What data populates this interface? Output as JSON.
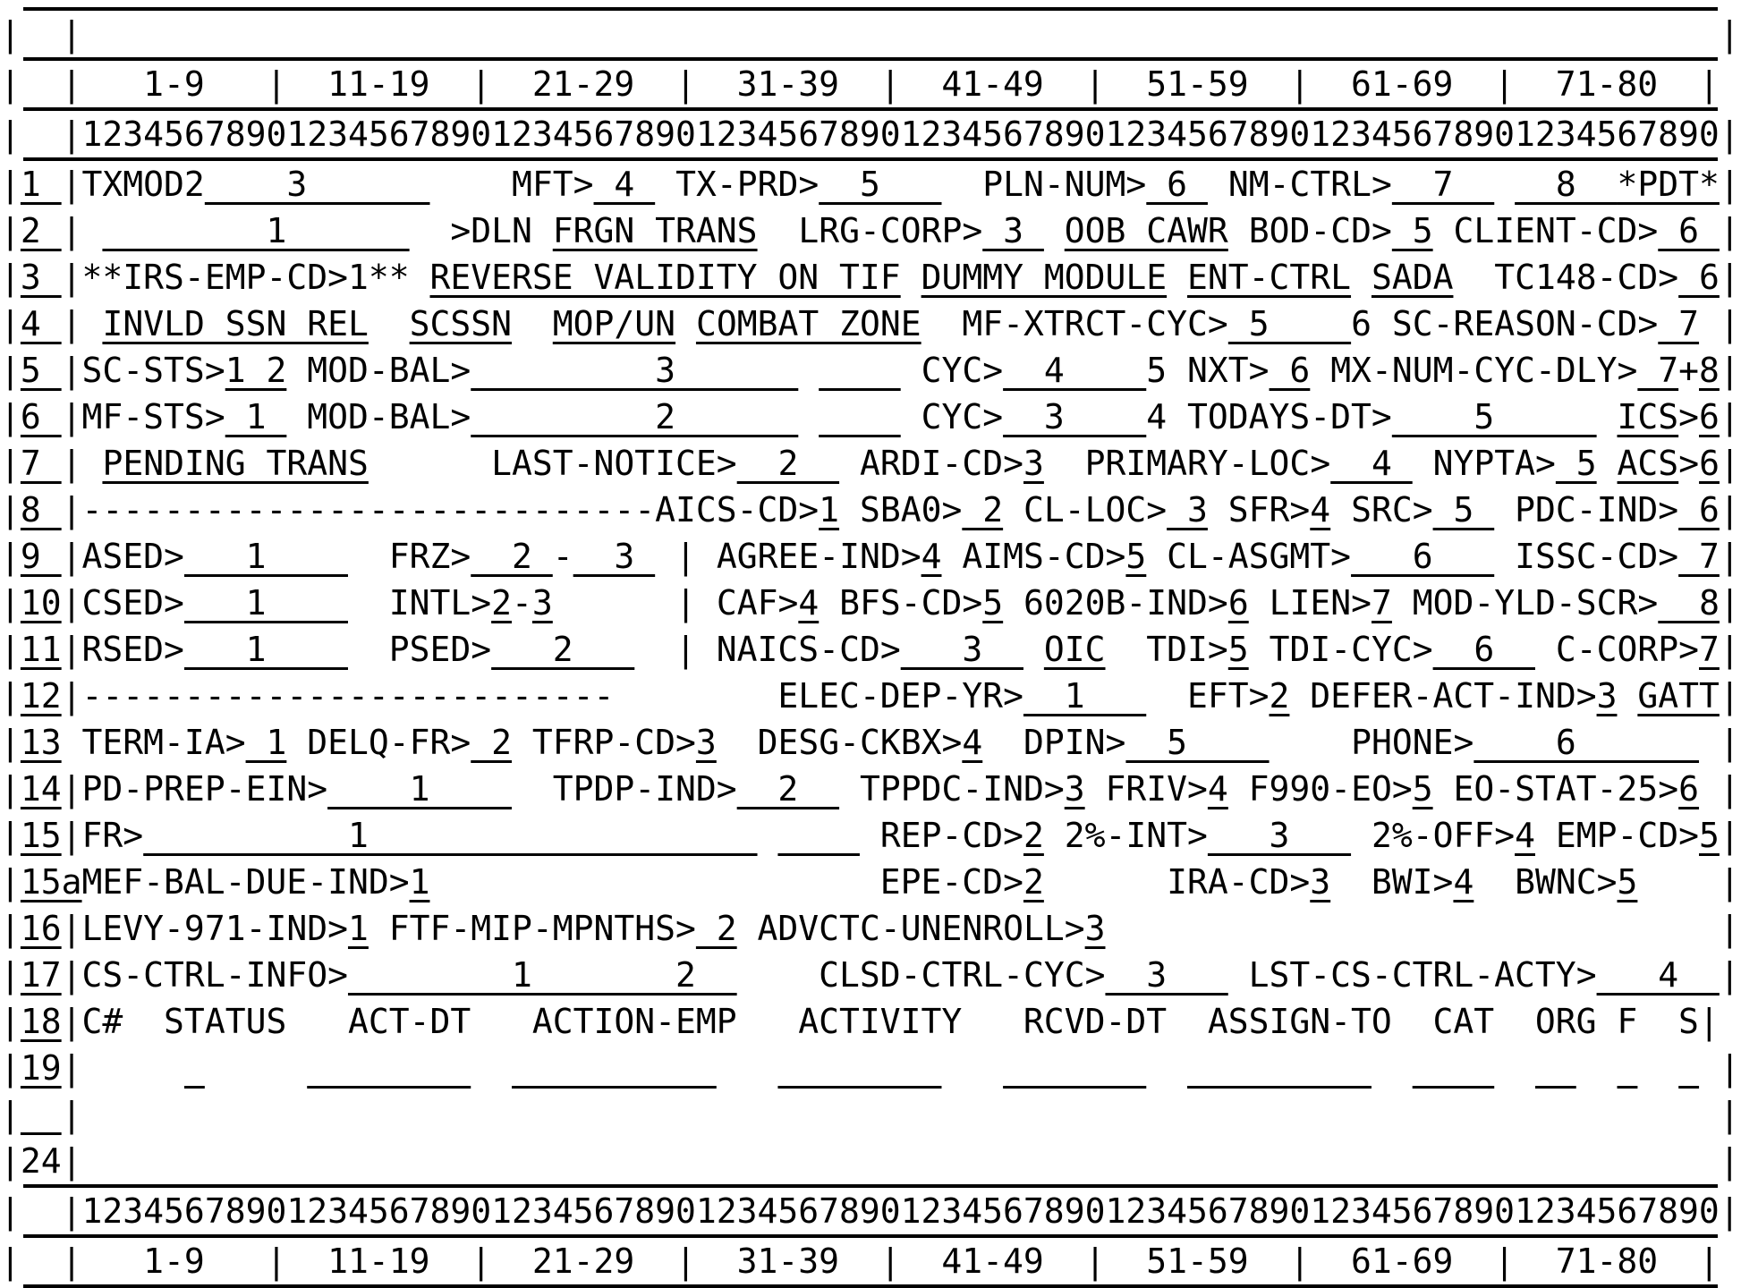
{
  "border_char": "|",
  "accent_color": "#000000",
  "background_color": "#ffffff",
  "lines": [
    {
      "hr": true
    },
    {
      "name": "blank-top-row",
      "n": "  ",
      "gu": false,
      "b": "|",
      "segs": [
        [
          "                                                                                ",
          0
        ]
      ]
    },
    {
      "hr": true
    },
    {
      "name": "column-ranges-header-top",
      "n": "  ",
      "gu": false,
      "b": "|",
      "segs": [
        [
          "   1-9   |  11-19  |  21-29  |  31-39  |  41-49  |  51-59  |  61-69  |  71-80  ",
          0
        ]
      ]
    },
    {
      "hr": true
    },
    {
      "name": "column-ruler-top",
      "n": "  ",
      "gu": false,
      "b": "|",
      "segs": [
        [
          "12345678901234567890123456789012345678901234567890123456789012345678901234567890",
          0
        ]
      ]
    },
    {
      "hr": true
    },
    {
      "name": "row-1",
      "n": "1 ",
      "gu": true,
      "b": "|",
      "segs": [
        [
          "TXMOD2",
          0
        ],
        [
          "    3      ",
          1
        ],
        [
          "    ",
          0
        ],
        [
          "MFT>",
          0
        ],
        [
          " 4 ",
          1
        ],
        [
          " ",
          0
        ],
        [
          "TX-PRD>",
          0
        ],
        [
          "  5   ",
          1
        ],
        [
          "  ",
          0
        ],
        [
          "PLN-NUM>",
          0
        ],
        [
          " 6 ",
          1
        ],
        [
          " ",
          0
        ],
        [
          "NM-CTRL>",
          0
        ],
        [
          "  7  ",
          1
        ],
        [
          " ",
          0
        ],
        [
          "  8  ",
          1
        ],
        [
          "*PDT*",
          1
        ]
      ]
    },
    {
      "name": "row-2",
      "n": "2 ",
      "gu": true,
      "b": "|",
      "segs": [
        [
          " ",
          0
        ],
        [
          "        1      ",
          1
        ],
        [
          "  ",
          0
        ],
        [
          ">DLN",
          0
        ],
        [
          " ",
          0
        ],
        [
          "FRGN TRANS",
          1
        ],
        [
          "  ",
          0
        ],
        [
          "LRG-CORP>",
          0
        ],
        [
          " 3 ",
          1
        ],
        [
          " ",
          0
        ],
        [
          "OOB CAWR",
          1
        ],
        [
          " ",
          0
        ],
        [
          "BOD-CD>",
          0
        ],
        [
          " 5",
          1
        ],
        [
          " ",
          0
        ],
        [
          "CLIENT-CD>",
          0
        ],
        [
          " 6 ",
          1
        ]
      ]
    },
    {
      "name": "row-3",
      "n": "3 ",
      "gu": true,
      "b": "|",
      "segs": [
        [
          "**IRS-EMP-CD>1** ",
          0
        ],
        [
          "REVERSE VALIDITY ON TIF",
          1
        ],
        [
          " ",
          0
        ],
        [
          "DUMMY MODULE",
          1
        ],
        [
          " ",
          0
        ],
        [
          "ENT-CTRL",
          1
        ],
        [
          " ",
          0
        ],
        [
          "SADA",
          1
        ],
        [
          "  ",
          0
        ],
        [
          "TC148-CD>",
          0
        ],
        [
          " 6",
          1
        ]
      ]
    },
    {
      "name": "row-4",
      "n": "4 ",
      "gu": true,
      "b": "|",
      "segs": [
        [
          " ",
          0
        ],
        [
          "INVLD SSN REL",
          1
        ],
        [
          "  ",
          0
        ],
        [
          "SCSSN",
          1
        ],
        [
          "  ",
          0
        ],
        [
          "MOP/UN",
          1
        ],
        [
          " ",
          0
        ],
        [
          "COMBAT ZONE",
          1
        ],
        [
          "  ",
          0
        ],
        [
          "MF-XTRCT-CYC>",
          0
        ],
        [
          " 5    ",
          1
        ],
        [
          "6",
          0
        ],
        [
          " ",
          0
        ],
        [
          "SC-REASON-CD>",
          0
        ],
        [
          " 7",
          1
        ],
        [
          " ",
          0
        ]
      ]
    },
    {
      "name": "row-5",
      "n": "5 ",
      "gu": true,
      "b": "|",
      "segs": [
        [
          "SC-STS>",
          0
        ],
        [
          "1 2",
          1
        ],
        [
          " MOD-BAL>",
          0
        ],
        [
          "         3      ",
          1
        ],
        [
          " ",
          0
        ],
        [
          "    ",
          1
        ],
        [
          " ",
          0
        ],
        [
          "CYC>",
          0
        ],
        [
          "  4    ",
          1
        ],
        [
          "5",
          0
        ],
        [
          " NXT>",
          0
        ],
        [
          " 6",
          1
        ],
        [
          " MX-NUM-CYC-DLY>",
          0
        ],
        [
          " 7",
          1
        ],
        [
          "+",
          0
        ],
        [
          "8",
          1
        ]
      ]
    },
    {
      "name": "row-6",
      "n": "6 ",
      "gu": true,
      "b": "|",
      "segs": [
        [
          "MF-STS>",
          0
        ],
        [
          " 1 ",
          1
        ],
        [
          " MOD-BAL>",
          0
        ],
        [
          "         2      ",
          1
        ],
        [
          " ",
          0
        ],
        [
          "    ",
          1
        ],
        [
          " ",
          0
        ],
        [
          "CYC>",
          0
        ],
        [
          "  3    ",
          1
        ],
        [
          "4",
          0
        ],
        [
          " TODAYS-DT>",
          0
        ],
        [
          "    5     ",
          1
        ],
        [
          " ",
          0
        ],
        [
          "ICS",
          1
        ],
        [
          ">",
          0
        ],
        [
          "6",
          1
        ]
      ]
    },
    {
      "name": "row-7",
      "n": "7 ",
      "gu": true,
      "b": "|",
      "segs": [
        [
          " ",
          0
        ],
        [
          "PENDING TRANS",
          1
        ],
        [
          "      ",
          0
        ],
        [
          "LAST-NOTICE>",
          0
        ],
        [
          "  2  ",
          1
        ],
        [
          " ",
          0
        ],
        [
          "ARDI-CD>",
          0
        ],
        [
          "3",
          1
        ],
        [
          "  ",
          0
        ],
        [
          "PRIMARY-LOC>",
          0
        ],
        [
          "  4 ",
          1
        ],
        [
          " ",
          0
        ],
        [
          "NYPTA>",
          0
        ],
        [
          " 5",
          1
        ],
        [
          " ",
          0
        ],
        [
          "ACS",
          1
        ],
        [
          ">",
          0
        ],
        [
          "6",
          1
        ]
      ]
    },
    {
      "name": "row-8",
      "n": "8 ",
      "gu": true,
      "b": "|",
      "segs": [
        [
          "----------------------------",
          0
        ],
        [
          "AICS-CD>",
          0
        ],
        [
          "1",
          1
        ],
        [
          " SBA0>",
          0
        ],
        [
          " 2",
          1
        ],
        [
          " CL-LOC>",
          0
        ],
        [
          " 3",
          1
        ],
        [
          " SFR>",
          0
        ],
        [
          "4",
          1
        ],
        [
          " SRC>",
          0
        ],
        [
          " 5 ",
          1
        ],
        [
          " PDC-IND>",
          0
        ],
        [
          " 6",
          1
        ]
      ]
    },
    {
      "name": "row-9",
      "n": "9 ",
      "gu": true,
      "b": "|",
      "segs": [
        [
          "ASED>",
          0
        ],
        [
          "   1    ",
          1
        ],
        [
          "  ",
          0
        ],
        [
          "FRZ>",
          0
        ],
        [
          "  2 ",
          1
        ],
        [
          "-",
          0
        ],
        [
          "  3 ",
          1
        ],
        [
          " | ",
          0
        ],
        [
          "AGREE-IND>",
          0
        ],
        [
          "4",
          1
        ],
        [
          " AIMS-CD>",
          0
        ],
        [
          "5",
          1
        ],
        [
          " CL-ASGMT>",
          0
        ],
        [
          "   6   ",
          1
        ],
        [
          " ISSC-CD>",
          0
        ],
        [
          " 7",
          1
        ]
      ]
    },
    {
      "name": "row-10",
      "n": "10",
      "gu": true,
      "b": "|",
      "segs": [
        [
          "CSED>",
          0
        ],
        [
          "   1    ",
          1
        ],
        [
          "  ",
          0
        ],
        [
          "INTL>",
          0
        ],
        [
          "2",
          1
        ],
        [
          "-",
          0
        ],
        [
          "3",
          1
        ],
        [
          "      | ",
          0
        ],
        [
          "CAF>",
          0
        ],
        [
          "4",
          1
        ],
        [
          " BFS-CD>",
          0
        ],
        [
          "5",
          1
        ],
        [
          " 6020B-IND>",
          0
        ],
        [
          "6",
          1
        ],
        [
          " LIEN>",
          0
        ],
        [
          "7",
          1
        ],
        [
          " MOD-YLD-SCR>",
          0
        ],
        [
          "  8",
          1
        ]
      ]
    },
    {
      "name": "row-11",
      "n": "11",
      "gu": true,
      "b": "|",
      "segs": [
        [
          "RSED>",
          0
        ],
        [
          "   1    ",
          1
        ],
        [
          "  ",
          0
        ],
        [
          "PSED>",
          0
        ],
        [
          "   2   ",
          1
        ],
        [
          "  | ",
          0
        ],
        [
          "NAICS-CD>",
          0
        ],
        [
          "   3  ",
          1
        ],
        [
          " ",
          0
        ],
        [
          "OIC",
          1
        ],
        [
          "  TDI>",
          0
        ],
        [
          "5",
          1
        ],
        [
          " TDI-CYC>",
          0
        ],
        [
          "  6  ",
          1
        ],
        [
          " C-CORP>",
          0
        ],
        [
          "7",
          1
        ]
      ]
    },
    {
      "name": "row-12",
      "n": "12",
      "gu": true,
      "b": "|",
      "segs": [
        [
          "--------------------------",
          0
        ],
        [
          "        ",
          0
        ],
        [
          "ELEC-DEP-YR>",
          0
        ],
        [
          "  1   ",
          1
        ],
        [
          "  EFT>",
          0
        ],
        [
          "2",
          1
        ],
        [
          " DEFER-ACT-IND>",
          0
        ],
        [
          "3",
          1
        ],
        [
          " ",
          0
        ],
        [
          "GATT",
          1
        ]
      ]
    },
    {
      "name": "row-13",
      "n": "13",
      "gu": true,
      "b": " ",
      "segs": [
        [
          "TERM-IA>",
          0
        ],
        [
          " 1",
          1
        ],
        [
          " DELQ-FR>",
          0
        ],
        [
          " 2",
          1
        ],
        [
          " TFRP-CD>",
          0
        ],
        [
          "3",
          1
        ],
        [
          "  DESG-CKBX>",
          0
        ],
        [
          "4",
          1
        ],
        [
          "  DPIN>",
          0
        ],
        [
          "  5    ",
          1
        ],
        [
          "    ",
          0
        ],
        [
          "PHONE>",
          0
        ],
        [
          "    6      ",
          1
        ],
        [
          " ",
          0
        ]
      ]
    },
    {
      "name": "row-14",
      "n": "14",
      "gu": true,
      "b": "|",
      "segs": [
        [
          "PD-PREP-EIN>",
          0
        ],
        [
          "    1    ",
          1
        ],
        [
          "  TPDP-IND>",
          0
        ],
        [
          "  2  ",
          1
        ],
        [
          " TPPDC-IND>",
          0
        ],
        [
          "3",
          1
        ],
        [
          " FRIV>",
          0
        ],
        [
          "4",
          1
        ],
        [
          " F990-EO>",
          0
        ],
        [
          "5",
          1
        ],
        [
          " EO-STAT-25>",
          0
        ],
        [
          "6",
          1
        ],
        [
          " ",
          0
        ]
      ]
    },
    {
      "name": "row-15",
      "n": "15",
      "gu": true,
      "b": "|",
      "segs": [
        [
          "FR>",
          0
        ],
        [
          "          1                   ",
          1
        ],
        [
          " ",
          0
        ],
        [
          "    ",
          1
        ],
        [
          " ",
          0
        ],
        [
          "REP-CD>",
          0
        ],
        [
          "2",
          1
        ],
        [
          " 2%-INT>",
          0
        ],
        [
          "   3   ",
          1
        ],
        [
          " 2%-OFF>",
          0
        ],
        [
          "4",
          1
        ],
        [
          " EMP-CD>",
          0
        ],
        [
          "5",
          1
        ]
      ]
    },
    {
      "name": "row-15a",
      "n": "15a",
      "gu": true,
      "b": "",
      "segs": [
        [
          "MEF-BAL-DUE-IND>",
          0
        ],
        [
          "1",
          1
        ],
        [
          "                      ",
          0
        ],
        [
          "EPE-CD>",
          0
        ],
        [
          "2",
          1
        ],
        [
          "      ",
          0
        ],
        [
          "IRA-CD>",
          0
        ],
        [
          "3",
          1
        ],
        [
          "  BWI>",
          0
        ],
        [
          "4",
          1
        ],
        [
          "  BWNC>",
          0
        ],
        [
          "5",
          1
        ],
        [
          "    ",
          0
        ]
      ]
    },
    {
      "name": "row-16",
      "n": "16",
      "gu": true,
      "b": "|",
      "segs": [
        [
          "LEVY-971-IND>",
          0
        ],
        [
          "1",
          1
        ],
        [
          " FTF-MIP-MPNTHS>",
          0
        ],
        [
          " 2",
          1
        ],
        [
          " ADVCTC-UNENROLL>",
          0
        ],
        [
          "3",
          1
        ],
        [
          "                              ",
          0
        ]
      ]
    },
    {
      "name": "row-17",
      "n": "17",
      "gu": true,
      "b": "|",
      "segs": [
        [
          "CS-CTRL-INFO>",
          0
        ],
        [
          "        1       2  ",
          1
        ],
        [
          "    ",
          0
        ],
        [
          "CLSD-CTRL-CYC>",
          0
        ],
        [
          "  3   ",
          1
        ],
        [
          " ",
          0
        ],
        [
          "LST-CS-CTRL-ACTY>",
          0
        ],
        [
          "   4  ",
          1
        ]
      ]
    },
    {
      "name": "row-18",
      "n": "18",
      "gu": true,
      "b": "|",
      "segs": [
        [
          "C#  STATUS   ACT-DT   ACTION-EMP   ACTIVITY   RCVD-DT  ASSIGN-TO  CAT  ORG F  S",
          0
        ]
      ]
    },
    {
      "name": "row-19",
      "n": "19",
      "gu": true,
      "b": "|",
      "segs": [
        [
          "     ",
          0
        ],
        [
          " ",
          1
        ],
        [
          "     ",
          0
        ],
        [
          "        ",
          1
        ],
        [
          "  ",
          0
        ],
        [
          "          ",
          1
        ],
        [
          "   ",
          0
        ],
        [
          "        ",
          1
        ],
        [
          "   ",
          0
        ],
        [
          "       ",
          1
        ],
        [
          "  ",
          0
        ],
        [
          "         ",
          1
        ],
        [
          "  ",
          0
        ],
        [
          "    ",
          1
        ],
        [
          "  ",
          0
        ],
        [
          "  ",
          1
        ],
        [
          "  ",
          0
        ],
        [
          " ",
          1
        ],
        [
          "  ",
          0
        ],
        [
          " ",
          1
        ],
        [
          " ",
          0
        ]
      ]
    },
    {
      "name": "blank-row",
      "n": "  ",
      "gu": true,
      "b": "|",
      "segs": [
        [
          "                                                                                ",
          0
        ]
      ]
    },
    {
      "name": "row-24",
      "n": "24",
      "gu": false,
      "b": "|",
      "segs": [
        [
          "                                                                                ",
          0
        ]
      ]
    },
    {
      "hr": true
    },
    {
      "name": "column-ruler-bottom",
      "n": "  ",
      "gu": false,
      "b": "|",
      "segs": [
        [
          "12345678901234567890123456789012345678901234567890123456789012345678901234567890",
          0
        ]
      ]
    },
    {
      "hr": true
    },
    {
      "name": "column-ranges-header-bottom",
      "n": "  ",
      "gu": false,
      "b": "|",
      "segs": [
        [
          "   1-9   |  11-19  |  21-29  |  31-39  |  41-49  |  51-59  |  61-69  |  71-80  ",
          0
        ]
      ]
    },
    {
      "hr": true
    }
  ]
}
